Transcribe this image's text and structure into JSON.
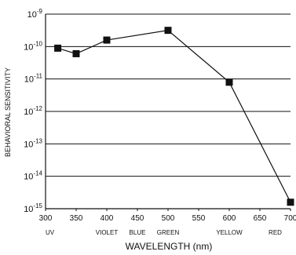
{
  "chart_data": {
    "type": "line",
    "title": "",
    "xlabel": "WAVELENGTH (nm)",
    "ylabel": "BEHAVIORAL SENSITIVITY",
    "y_scale": "log",
    "xlim": [
      300,
      700
    ],
    "ylim_exponent": [
      -15,
      -9
    ],
    "grid": "horizontal",
    "legend": "none",
    "x_ticks": [
      "300",
      "350",
      "400",
      "450",
      "500",
      "550",
      "600",
      "650",
      "700"
    ],
    "y_ticks": [
      {
        "exp": -9,
        "base": "10",
        "sup": "-9"
      },
      {
        "exp": -10,
        "base": "10",
        "sup": "-10"
      },
      {
        "exp": -11,
        "base": "10",
        "sup": "-11"
      },
      {
        "exp": -12,
        "base": "10",
        "sup": "-12"
      },
      {
        "exp": -13,
        "base": "10",
        "sup": "-13"
      },
      {
        "exp": -14,
        "base": "10",
        "sup": "-14"
      },
      {
        "exp": -15,
        "base": "10",
        "sup": "-15"
      }
    ],
    "color_bands": [
      {
        "label": "UV",
        "x": 315
      },
      {
        "label": "VIOLET",
        "x": 400
      },
      {
        "label": "BLUE",
        "x": 450
      },
      {
        "label": "GREEN",
        "x": 500
      },
      {
        "label": "YELLOW",
        "x": 600
      },
      {
        "label": "RED",
        "x": 675
      }
    ],
    "series": [
      {
        "x": [
          320,
          350,
          400,
          500,
          600,
          700
        ],
        "y_exponent": [
          -10.05,
          -10.22,
          -9.8,
          -9.5,
          -11.1,
          -14.8
        ]
      }
    ],
    "colors": {
      "line": "#111111",
      "marker": "#111111",
      "grid": "#111111",
      "axis": "#111111"
    }
  }
}
